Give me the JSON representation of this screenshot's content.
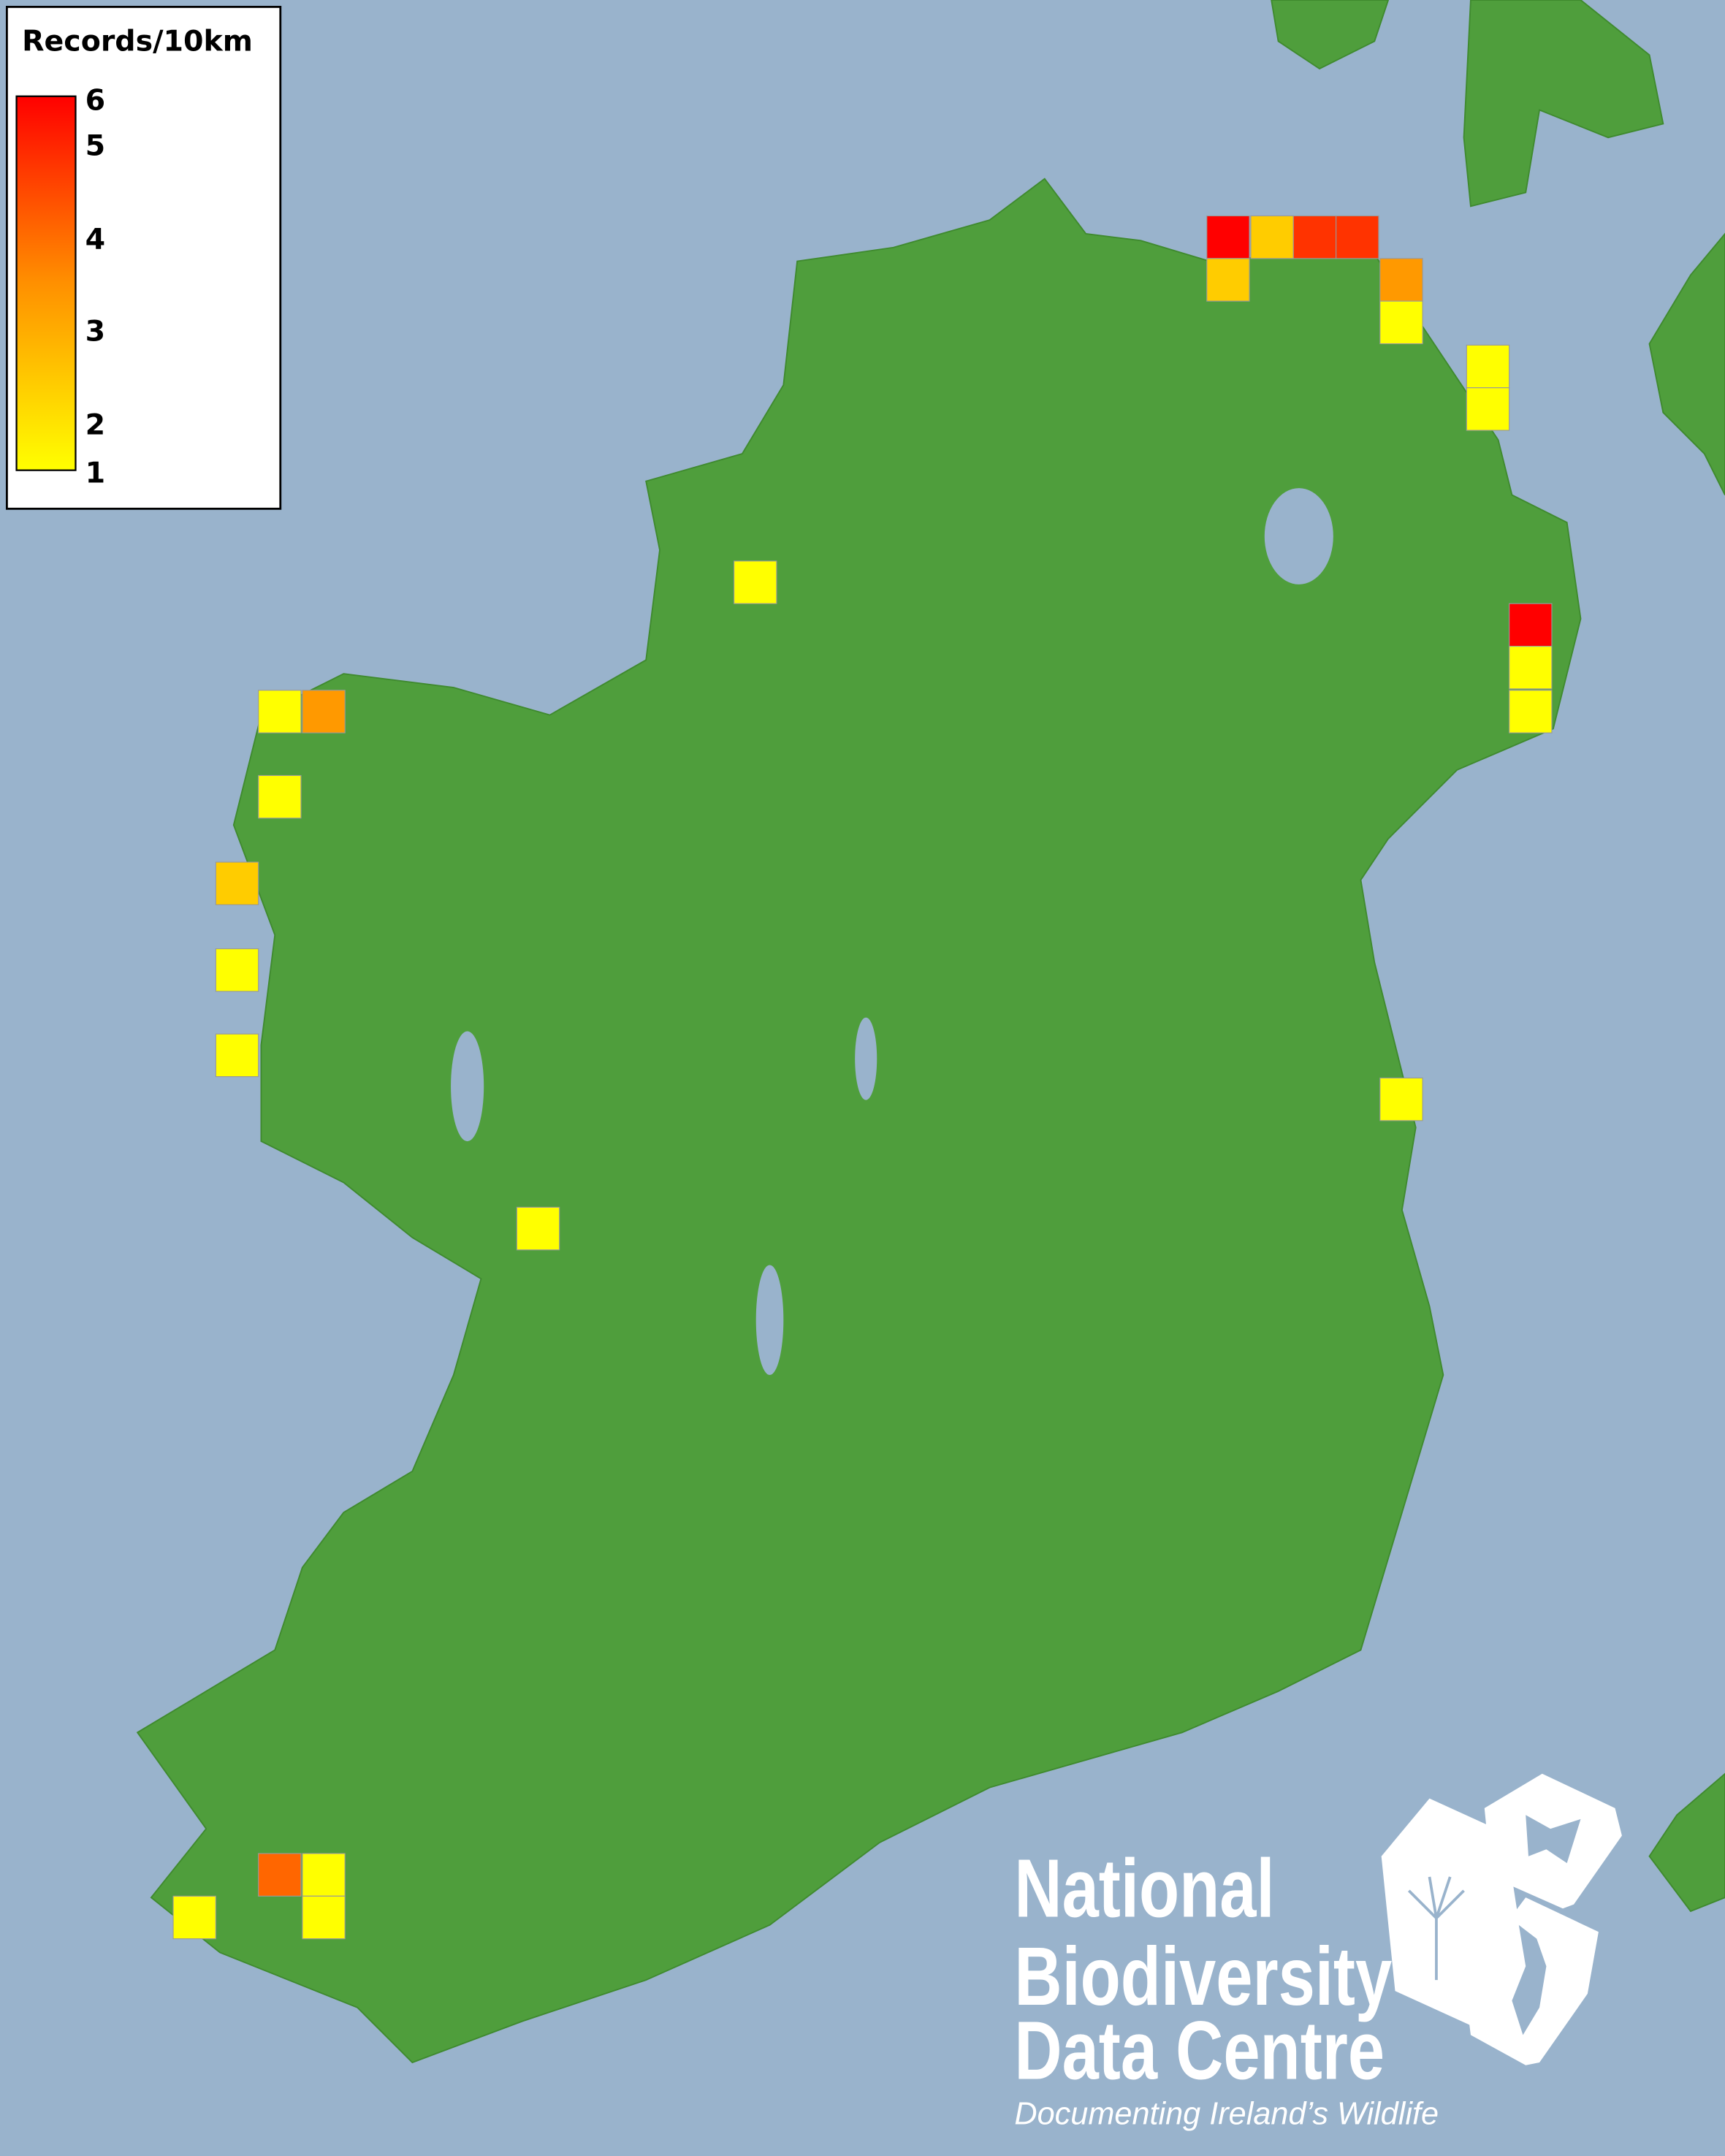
{
  "colors": {
    "sea": "#99b3cc",
    "land": "#4f9e3c",
    "low": "#ffff00",
    "high": "#ff0000"
  },
  "legend": {
    "title": "Records/10km",
    "ticks": [
      "6",
      "5",
      "4",
      "3",
      "2",
      "1"
    ],
    "min": 1,
    "max": 6
  },
  "cells": {
    "values": [
      6,
      2,
      5,
      5,
      2,
      3,
      1,
      1,
      1,
      1,
      6,
      1,
      1,
      1,
      3,
      1,
      2,
      1,
      1,
      1,
      1,
      4,
      1,
      1,
      1
    ]
  },
  "logo": {
    "line1": "National",
    "line2": "Biodiversity",
    "line3": "Data Centre",
    "tagline": "Documenting Ireland’s Wildlife"
  }
}
